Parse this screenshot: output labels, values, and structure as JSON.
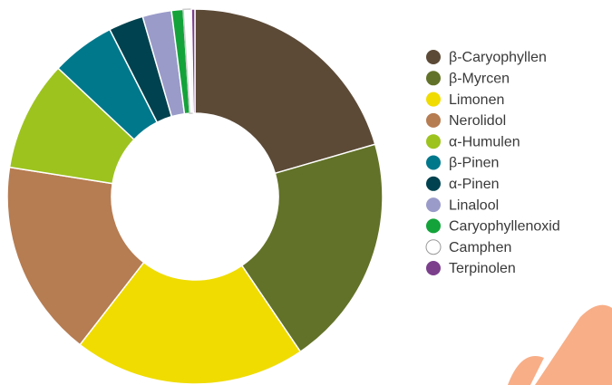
{
  "chart_data": {
    "type": "donut",
    "categories": [
      "β-Caryophyllen",
      "β-Myrcen",
      "Limonen",
      "Nerolidol",
      "α-Humulen",
      "β-Pinen",
      "α-Pinen",
      "Linalool",
      "Caryophyllenoxid",
      "Camphen",
      "Terpinolen"
    ],
    "values": [
      20.5,
      20,
      20,
      17,
      9.5,
      5.5,
      3,
      2.5,
      1,
      0.7,
      0.3
    ],
    "colors": [
      "#5c4a37",
      "#627228",
      "#f0dc00",
      "#b67c52",
      "#9dc31f",
      "#00788c",
      "#00424f",
      "#9a9bc9",
      "#13a33a",
      "#ffffff",
      "#7b3f8c"
    ],
    "legend": "right"
  }
}
